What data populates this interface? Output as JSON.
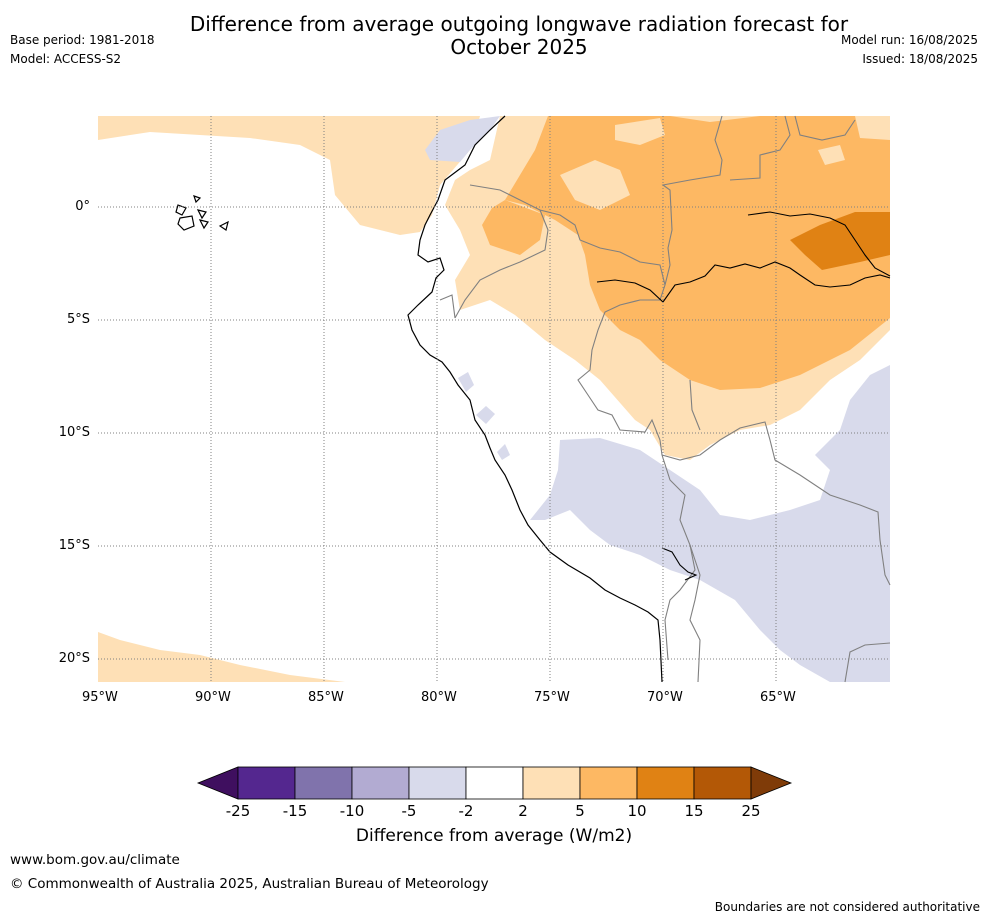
{
  "header": {
    "title": "Difference from average outgoing longwave radiation forecast for October 2025",
    "base_period": "Base period: 1981-2018",
    "model": "Model: ACCESS-S2",
    "model_run": "Model run: 16/08/2025",
    "issued": "Issued: 18/08/2025"
  },
  "map": {
    "lon_ticks": [
      "95°W",
      "90°W",
      "85°W",
      "80°W",
      "75°W",
      "70°W",
      "65°W"
    ],
    "lat_ticks": [
      "0°",
      "5°S",
      "10°S",
      "15°S",
      "20°S"
    ]
  },
  "legend": {
    "title": "Difference from average (W/m2)",
    "labels": [
      "-25",
      "-15",
      "-10",
      "-5",
      "-2",
      "2",
      "5",
      "10",
      "15",
      "25"
    ],
    "colors": [
      "#3f0f5f",
      "#54278f",
      "#8073ac",
      "#b2abd2",
      "#d8daeb",
      "#ffffff",
      "#fee0b6",
      "#fdb863",
      "#e08214",
      "#b35806",
      "#7f3b08"
    ]
  },
  "footer": {
    "url": "www.bom.gov.au/climate",
    "copyright": "© Commonwealth of Australia 2025, Australian Bureau of Meteorology",
    "disclaimer": "Boundaries are not considered authoritative"
  }
}
